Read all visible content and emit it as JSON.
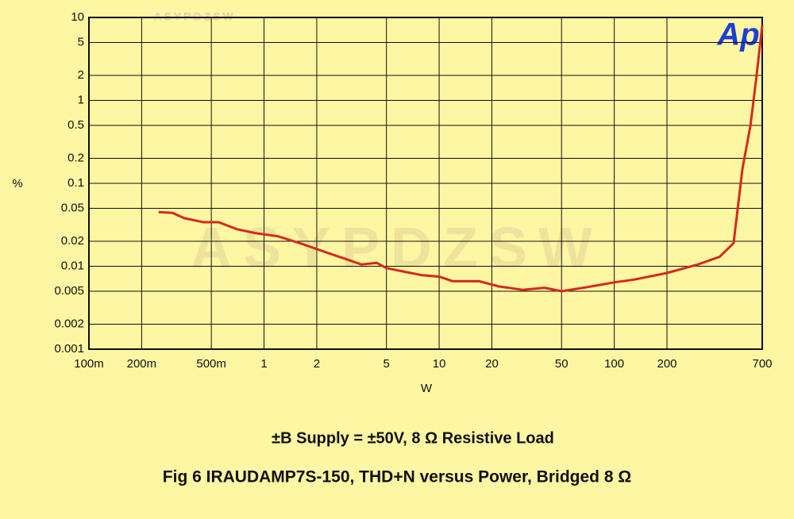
{
  "chart_data": {
    "type": "line",
    "title": "Fig 6 IRAUDAMP7S-150, THD+N versus Power, Bridged 8 Ω",
    "subtitle": "±B Supply = ±50V,  8 Ω Resistive Load",
    "x_label": "W",
    "y_label": "%",
    "logo": "Ap",
    "watermark": "ASYPDZSW",
    "x": [
      0.25,
      0.3,
      0.35,
      0.45,
      0.55,
      0.7,
      0.9,
      1.2,
      1.6,
      2.2,
      3,
      3.6,
      4.4,
      5,
      6.5,
      8,
      10,
      12,
      17,
      22,
      30,
      40,
      50,
      70,
      100,
      130,
      200,
      300,
      400,
      480,
      540,
      600,
      650,
      700
    ],
    "values": [
      0.045,
      0.044,
      0.038,
      0.034,
      0.034,
      0.028,
      0.025,
      0.023,
      0.019,
      0.015,
      0.012,
      0.0105,
      0.011,
      0.0095,
      0.0085,
      0.0078,
      0.0075,
      0.0066,
      0.0066,
      0.0057,
      0.0052,
      0.0055,
      0.005,
      0.0056,
      0.0064,
      0.0069,
      0.0083,
      0.0105,
      0.013,
      0.019,
      0.15,
      0.5,
      2,
      8
    ],
    "color": "#d42a1e",
    "xscale": "log",
    "yscale": "log",
    "grid": true,
    "xlim": [
      0.1,
      700
    ],
    "ylim": [
      0.001,
      10
    ],
    "xticks": [
      {
        "value": 0.1,
        "label": "100m"
      },
      {
        "value": 0.2,
        "label": "200m"
      },
      {
        "value": 0.5,
        "label": "500m"
      },
      1,
      2,
      5,
      10,
      20,
      50,
      100,
      200,
      700
    ],
    "yticks": [
      10,
      5,
      2,
      1,
      0.5,
      0.2,
      0.1,
      0.05,
      0.02,
      0.01,
      0.005,
      0.002,
      0.001
    ]
  }
}
